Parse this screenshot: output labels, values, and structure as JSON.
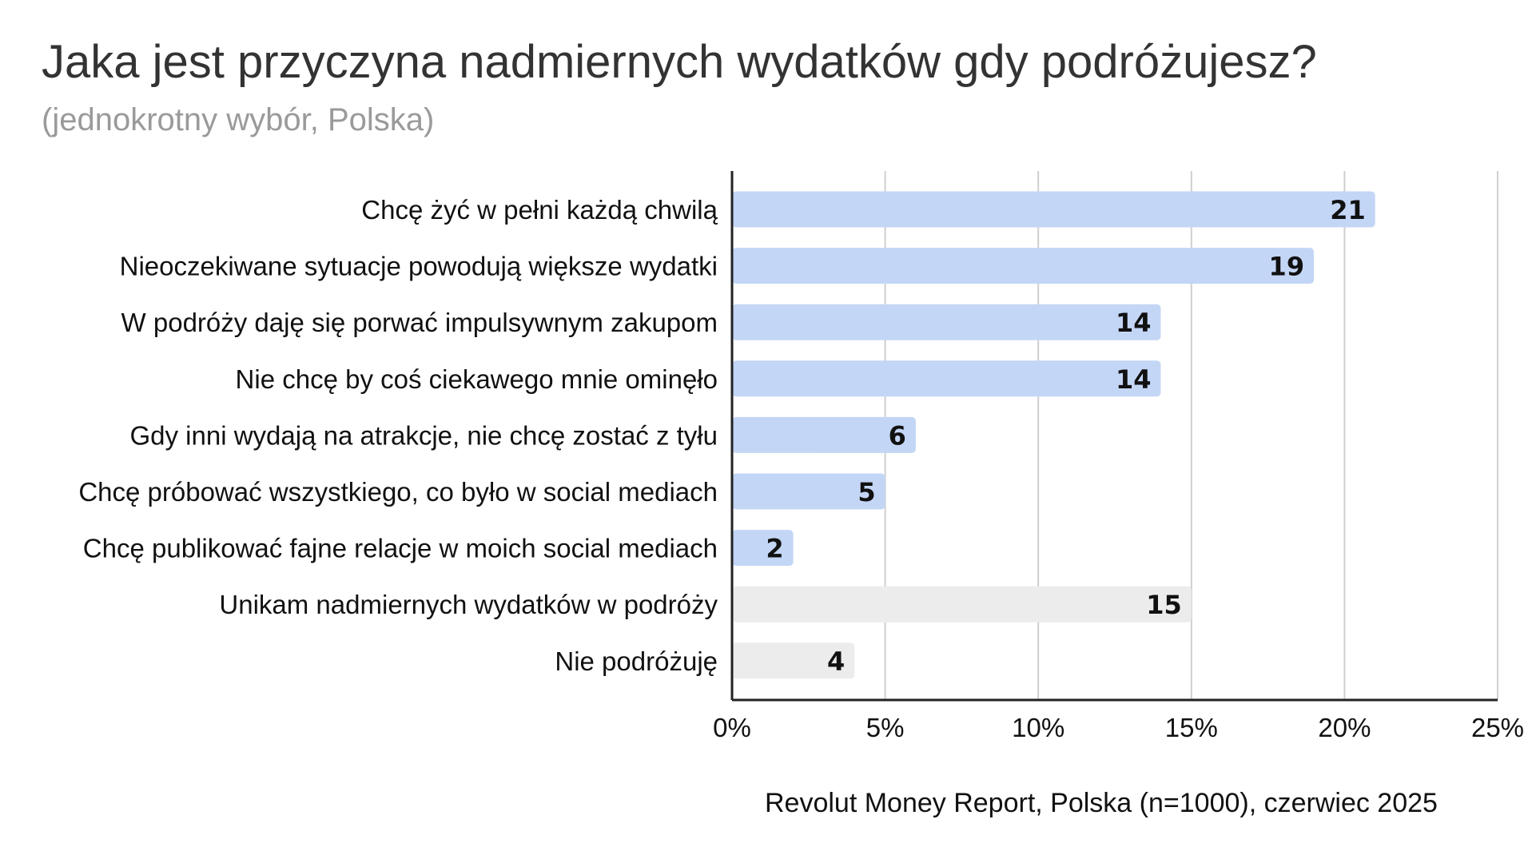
{
  "chart_data": {
    "type": "bar",
    "orientation": "horizontal",
    "title": "Jaka jest przyczyna nadmiernych wydatków gdy podróżujesz?",
    "subtitle": "(jednokrotny wybór, Polska)",
    "source": "Revolut Money Report, Polska (n=1000), czerwiec 2025",
    "categories": [
      "Chcę żyć w pełni każdą chwilą",
      "Nieoczekiwane sytuacje powodują większe wydatki",
      "W podróży daję się porwać impulsywnym zakupom",
      "Nie chcę by coś ciekawego mnie ominęło",
      "Gdy inni wydają na atrakcje, nie chcę zostać z tyłu",
      "Chcę próbować wszystkiego, co było w social mediach",
      "Chcę publikować fajne relacje w moich social mediach",
      "Unikam nadmiernych wydatków w podróży",
      "Nie podróżuję"
    ],
    "values": [
      21,
      19,
      14,
      14,
      6,
      5,
      2,
      15,
      4
    ],
    "bar_colors": [
      "#c4d6f6",
      "#c4d6f6",
      "#c4d6f6",
      "#c4d6f6",
      "#c4d6f6",
      "#c4d6f6",
      "#c4d6f6",
      "#ececec",
      "#ececec"
    ],
    "xlim": [
      0,
      25
    ],
    "xticks": [
      {
        "value": 0,
        "label": "0%"
      },
      {
        "value": 5,
        "label": "5%"
      },
      {
        "value": 10,
        "label": "10%"
      },
      {
        "value": 15,
        "label": "15%"
      },
      {
        "value": 20,
        "label": "20%"
      },
      {
        "value": 25,
        "label": "25%"
      }
    ],
    "grid": true,
    "legend": "none",
    "gridline_color": "#cfcfcf",
    "axis_color": "#222222"
  }
}
